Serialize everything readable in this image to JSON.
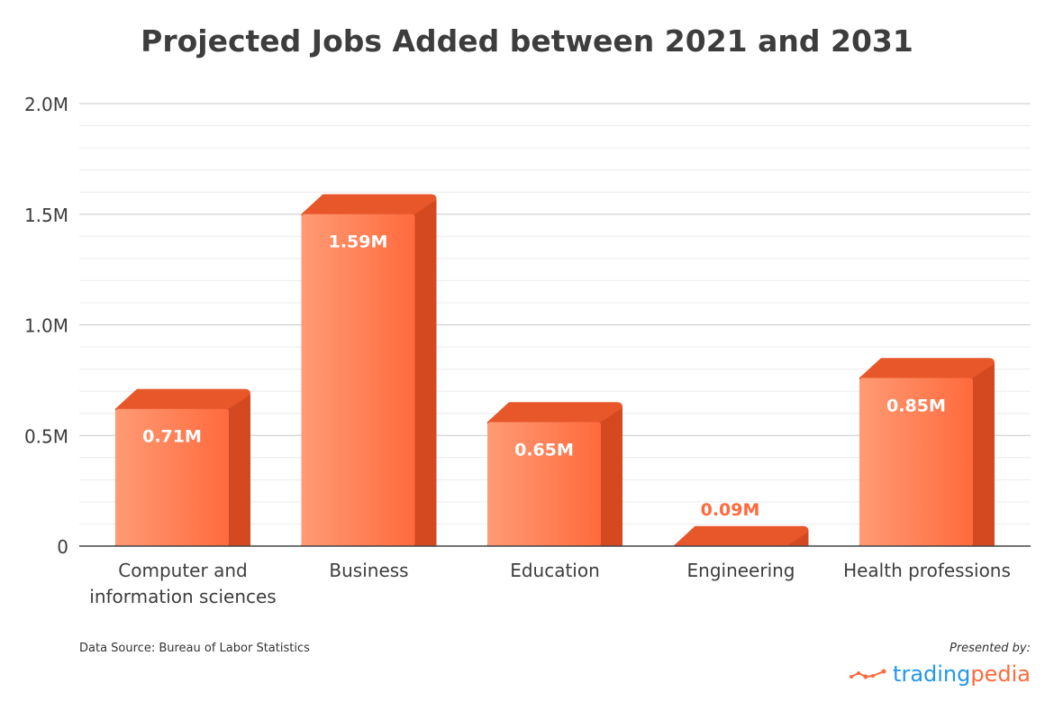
{
  "chart_data": {
    "type": "bar",
    "title": "Projected Jobs Added between 2021 and 2031",
    "categories": [
      "Computer and\ninformation sciences",
      "Business",
      "Education",
      "Engineering",
      "Health professions"
    ],
    "values": [
      0.71,
      1.59,
      0.65,
      0.09,
      0.85
    ],
    "value_labels": [
      "0.71M",
      "1.59M",
      "0.65M",
      "0.09M",
      "0.85M"
    ],
    "yticks": [
      0,
      0.5,
      1.0,
      1.5,
      2.0
    ],
    "ytick_labels": [
      "0",
      "0.5M",
      "1.0M",
      "1.5M",
      "2.0M"
    ],
    "ylim": [
      0,
      2.0
    ],
    "xlabel": "",
    "ylabel": "",
    "grid": true,
    "colors": {
      "front_light": "#ff9b74",
      "front_dark": "#ff6a3d",
      "side": "#d4491f",
      "top": "#e8572a",
      "text": "#3d3d3d"
    }
  },
  "footer": {
    "source": "Data Source: Bureau of Labor Statistics",
    "presented_by": "Presented by:",
    "logo_part1": "trading",
    "logo_part2": "pedia"
  }
}
